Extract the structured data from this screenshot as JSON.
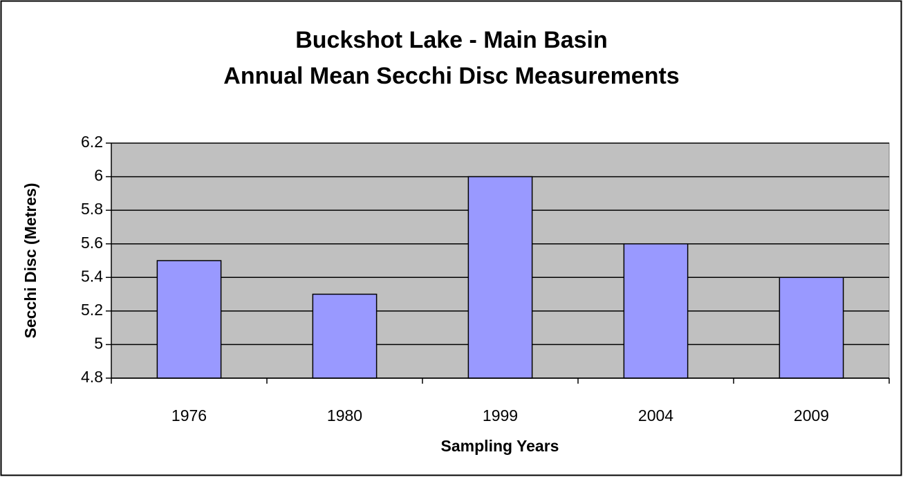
{
  "chart_data": {
    "type": "bar",
    "title": [
      "Buckshot Lake - Main Basin",
      "Annual Mean Secchi Disc Measurements"
    ],
    "x_label": "Sampling Years",
    "y_label": "Secchi Disc (Metres)",
    "categories": [
      "1976",
      "1980",
      "1999",
      "2004",
      "2009"
    ],
    "values": [
      5.5,
      5.3,
      6.0,
      5.6,
      5.4
    ],
    "color": "#9999ff",
    "background": "#c0c0c0",
    "ylim": [
      4.8,
      6.2
    ],
    "yticks": [
      4.8,
      5,
      5.2,
      5.4,
      5.6,
      5.8,
      6,
      6.2
    ],
    "grid": true
  }
}
